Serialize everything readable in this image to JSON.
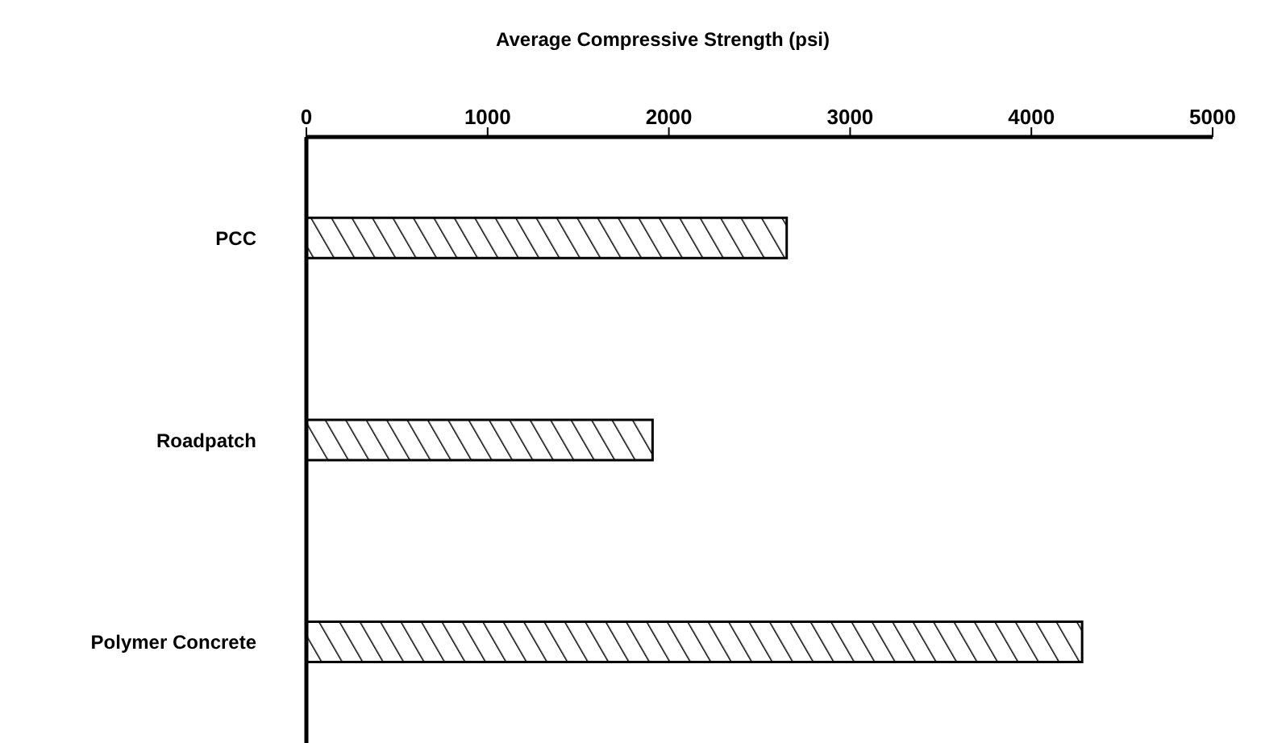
{
  "chart_data": {
    "type": "bar",
    "orientation": "horizontal",
    "xlabel": "Average Compressive Strength (psi)",
    "categories": [
      "PCC",
      "Roadpatch",
      "Polymer Concrete"
    ],
    "values": [
      2650,
      1910,
      4280
    ],
    "color": "#000000",
    "xlim": [
      0,
      5000
    ],
    "xticks": [
      0,
      1000,
      2000,
      3000,
      4000,
      5000
    ],
    "grid": false
  }
}
